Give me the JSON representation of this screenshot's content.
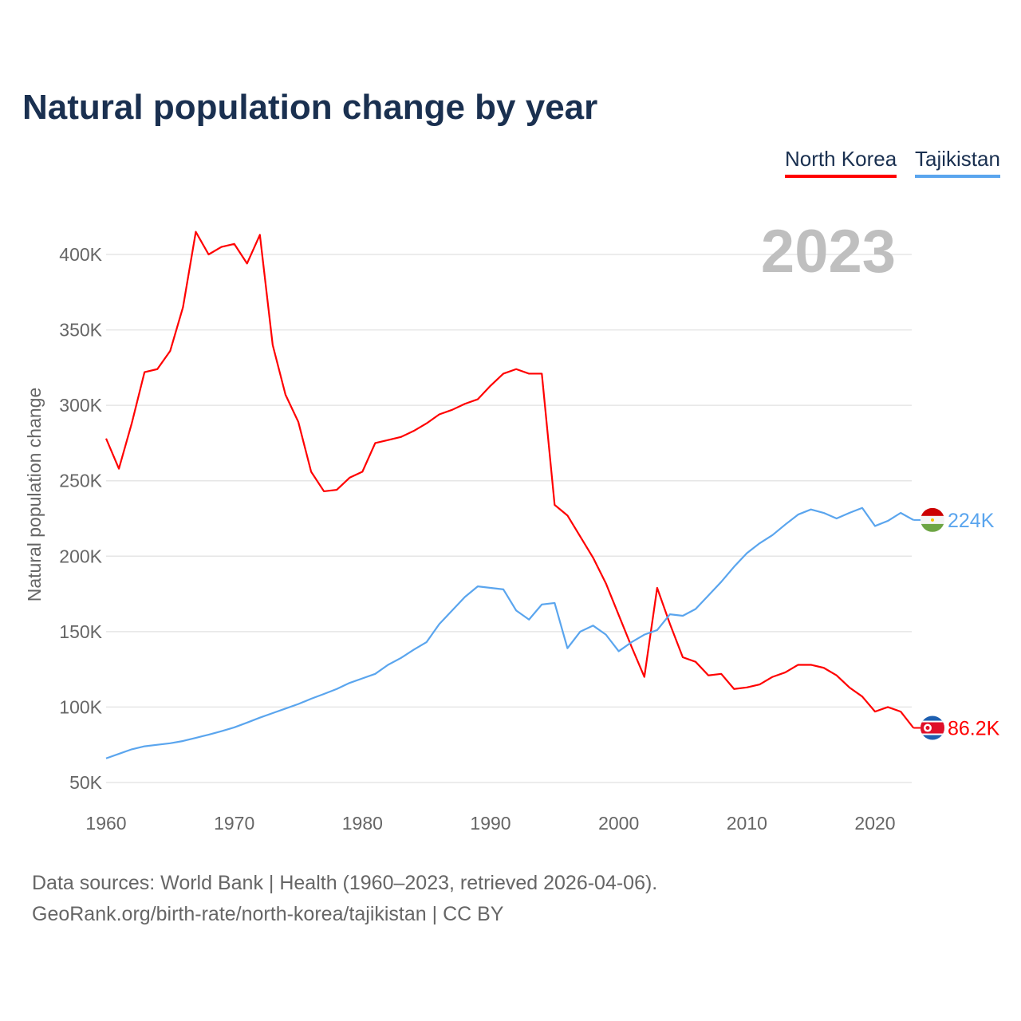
{
  "chart_data": {
    "type": "line",
    "title": "Natural population change by year",
    "ylabel": "Natural population change",
    "xlabel": "",
    "ylim": [
      50000,
      420000
    ],
    "xlim": [
      1960,
      2023
    ],
    "yticks": [
      50000,
      100000,
      150000,
      200000,
      250000,
      300000,
      350000,
      400000
    ],
    "ytick_labels": [
      "50K",
      "100K",
      "150K",
      "200K",
      "250K",
      "300K",
      "350K",
      "400K"
    ],
    "xticks": [
      1960,
      1970,
      1980,
      1990,
      2000,
      2010,
      2020
    ],
    "xtick_labels": [
      "1960",
      "1970",
      "1980",
      "1990",
      "2000",
      "2010",
      "2020"
    ],
    "grid": true,
    "legend_position": "top-right",
    "year_label": "2023",
    "x_start": 1960,
    "series": [
      {
        "name": "North Korea",
        "color": "#ff0000",
        "end_label": "86.2K",
        "flag": "north-korea",
        "values": [
          278,
          258,
          288,
          322,
          324,
          336,
          365,
          415,
          400,
          405,
          407,
          394,
          413,
          340,
          307,
          289,
          256,
          243,
          244,
          252,
          256,
          275,
          277,
          279,
          283,
          288,
          294,
          297,
          301,
          304,
          313,
          321,
          324,
          321,
          321,
          234,
          227,
          213,
          199,
          182,
          161,
          140,
          120,
          179,
          155,
          133,
          130,
          121,
          122,
          112,
          113,
          115,
          120,
          123,
          128,
          128,
          126,
          121,
          113,
          107,
          97,
          100,
          97,
          86.2
        ]
      },
      {
        "name": "Tajikistan",
        "color": "#5aa5ee",
        "end_label": "224K",
        "flag": "tajikistan",
        "values": [
          66,
          69,
          72,
          74,
          75,
          76,
          77.5,
          79.6,
          81.7,
          84,
          86.5,
          89.7,
          93,
          96,
          99,
          102,
          105.5,
          108.7,
          112,
          116,
          119,
          122,
          128,
          132.5,
          138,
          143,
          155,
          164,
          173,
          180,
          179,
          178,
          164,
          158,
          168,
          169,
          139,
          150,
          154,
          148,
          137,
          143,
          148,
          151,
          161.5,
          160.5,
          165,
          174,
          183,
          193,
          202,
          208.6,
          214,
          221,
          227.6,
          231,
          228.7,
          225,
          228.7,
          232,
          220,
          223.4,
          228.7,
          224
        ]
      }
    ],
    "value_unit": "thousands"
  },
  "footer": {
    "line1": "Data sources: World Bank | Health (1960–2023, retrieved 2026-04-06).",
    "line2": "GeoRank.org/birth-rate/north-korea/tajikistan | CC BY"
  }
}
